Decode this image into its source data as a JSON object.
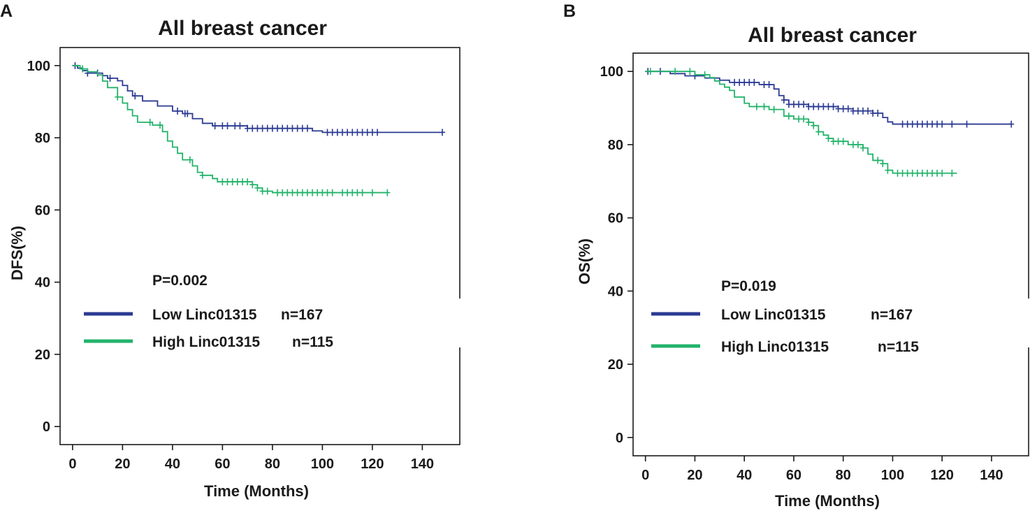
{
  "colors": {
    "low": "#2b3a92",
    "high": "#22b36a",
    "axis": "#1a1a1a"
  },
  "chart_data": [
    {
      "type": "line",
      "panel": "A",
      "title": "All breast cancer",
      "xlabel": "Time (Months)",
      "ylabel": "DFS(%)",
      "xlim": [
        -5,
        155
      ],
      "ylim": [
        -5,
        105
      ],
      "xticks": [
        "0",
        "20",
        "40",
        "60",
        "80",
        "100",
        "120",
        "140"
      ],
      "yticks": [
        "0",
        "20",
        "40",
        "60",
        "80",
        "100"
      ],
      "pvalue": "P=0.002",
      "legend": [
        {
          "label": "Low Linc01315",
          "n": "n=167",
          "color": "low"
        },
        {
          "label": "High Linc01315",
          "n": "n=115",
          "color": "high"
        }
      ],
      "series": [
        {
          "name": "Low Linc01315",
          "color": "low",
          "steps": [
            [
              0,
              100
            ],
            [
              2,
              99.3
            ],
            [
              4,
              98.6
            ],
            [
              6,
              97.9
            ],
            [
              12,
              97.2
            ],
            [
              14,
              96.5
            ],
            [
              18,
              95.8
            ],
            [
              20,
              94.5
            ],
            [
              22,
              93.0
            ],
            [
              24,
              91.6
            ],
            [
              28,
              90.2
            ],
            [
              34,
              88.8
            ],
            [
              40,
              87.4
            ],
            [
              44,
              86.7
            ],
            [
              48,
              85.3
            ],
            [
              52,
              84.0
            ],
            [
              56,
              83.3
            ],
            [
              70,
              82.6
            ],
            [
              96,
              81.9
            ],
            [
              100,
              81.5
            ],
            [
              148,
              81.5
            ]
          ],
          "censors": [
            1,
            6,
            10,
            15,
            25,
            42,
            45,
            46,
            57,
            60,
            62,
            65,
            67,
            70,
            72,
            74,
            76,
            78,
            80,
            82,
            84,
            86,
            88,
            90,
            92,
            94,
            102,
            104,
            106,
            108,
            110,
            112,
            114,
            116,
            118,
            120,
            122,
            148
          ]
        },
        {
          "name": "High Linc01315",
          "color": "high",
          "steps": [
            [
              0,
              100
            ],
            [
              3,
              99.1
            ],
            [
              6,
              98.3
            ],
            [
              10,
              97.4
            ],
            [
              12,
              95.7
            ],
            [
              14,
              93.9
            ],
            [
              18,
              91.3
            ],
            [
              20,
              89.6
            ],
            [
              22,
              87.8
            ],
            [
              24,
              86.1
            ],
            [
              26,
              84.3
            ],
            [
              32,
              83.5
            ],
            [
              36,
              81.7
            ],
            [
              38,
              79.1
            ],
            [
              40,
              77.4
            ],
            [
              42,
              75.7
            ],
            [
              44,
              73.9
            ],
            [
              48,
              72.2
            ],
            [
              50,
              70.4
            ],
            [
              52,
              69.6
            ],
            [
              56,
              68.7
            ],
            [
              58,
              67.8
            ],
            [
              72,
              67.0
            ],
            [
              74,
              66.1
            ],
            [
              76,
              65.2
            ],
            [
              80,
              64.8
            ],
            [
              126,
              64.8
            ]
          ],
          "censors": [
            4,
            18,
            31,
            35,
            47,
            52,
            60,
            62,
            64,
            66,
            68,
            70,
            72,
            74,
            76,
            78,
            82,
            84,
            86,
            88,
            90,
            92,
            94,
            96,
            98,
            100,
            102,
            104,
            108,
            110,
            112,
            114,
            116,
            120,
            126
          ]
        }
      ]
    },
    {
      "type": "line",
      "panel": "B",
      "title": "All breast cancer",
      "xlabel": "Time (Months)",
      "ylabel": "OS(%)",
      "xlim": [
        -5,
        155
      ],
      "ylim": [
        -5,
        105
      ],
      "xticks": [
        "0",
        "20",
        "40",
        "60",
        "80",
        "100",
        "120",
        "140"
      ],
      "yticks": [
        "0",
        "20",
        "40",
        "60",
        "80",
        "100"
      ],
      "pvalue": "P=0.019",
      "legend": [
        {
          "label": "Low Linc01315",
          "n": "n=167",
          "color": "low"
        },
        {
          "label": "High Linc01315",
          "n": "n=115",
          "color": "high"
        }
      ],
      "series": [
        {
          "name": "Low Linc01315",
          "color": "low",
          "steps": [
            [
              0,
              100
            ],
            [
              10,
              99.4
            ],
            [
              16,
              98.8
            ],
            [
              24,
              98.2
            ],
            [
              30,
              97.6
            ],
            [
              34,
              97.0
            ],
            [
              46,
              96.4
            ],
            [
              52,
              95.2
            ],
            [
              54,
              93.4
            ],
            [
              56,
              92.2
            ],
            [
              58,
              91.0
            ],
            [
              66,
              90.4
            ],
            [
              78,
              89.8
            ],
            [
              84,
              89.2
            ],
            [
              92,
              88.6
            ],
            [
              96,
              87.4
            ],
            [
              98,
              86.2
            ],
            [
              100,
              85.6
            ],
            [
              148,
              85.6
            ]
          ],
          "censors": [
            1,
            6,
            20,
            36,
            38,
            40,
            42,
            44,
            48,
            50,
            56,
            58,
            60,
            62,
            64,
            66,
            68,
            70,
            72,
            74,
            76,
            78,
            80,
            82,
            84,
            86,
            88,
            90,
            92,
            94,
            104,
            106,
            108,
            110,
            112,
            114,
            116,
            118,
            120,
            124,
            130,
            148
          ]
        },
        {
          "name": "High Linc01315",
          "color": "high",
          "steps": [
            [
              0,
              100
            ],
            [
              20,
              99.1
            ],
            [
              26,
              98.3
            ],
            [
              28,
              97.4
            ],
            [
              30,
              96.5
            ],
            [
              32,
              95.7
            ],
            [
              34,
              94.8
            ],
            [
              36,
              93.0
            ],
            [
              40,
              91.3
            ],
            [
              42,
              90.4
            ],
            [
              50,
              89.6
            ],
            [
              56,
              87.8
            ],
            [
              60,
              87.0
            ],
            [
              66,
              86.1
            ],
            [
              68,
              85.2
            ],
            [
              70,
              83.5
            ],
            [
              72,
              82.6
            ],
            [
              74,
              81.7
            ],
            [
              76,
              80.9
            ],
            [
              82,
              80.0
            ],
            [
              88,
              79.1
            ],
            [
              90,
              77.4
            ],
            [
              92,
              75.7
            ],
            [
              96,
              74.8
            ],
            [
              98,
              73.0
            ],
            [
              100,
              72.2
            ],
            [
              126,
              72.2
            ]
          ],
          "censors": [
            2,
            12,
            18,
            24,
            45,
            48,
            52,
            58,
            62,
            64,
            66,
            68,
            70,
            74,
            76,
            78,
            80,
            84,
            86,
            88,
            94,
            96,
            98,
            102,
            104,
            106,
            108,
            110,
            112,
            114,
            116,
            118,
            120,
            124
          ]
        }
      ]
    }
  ]
}
